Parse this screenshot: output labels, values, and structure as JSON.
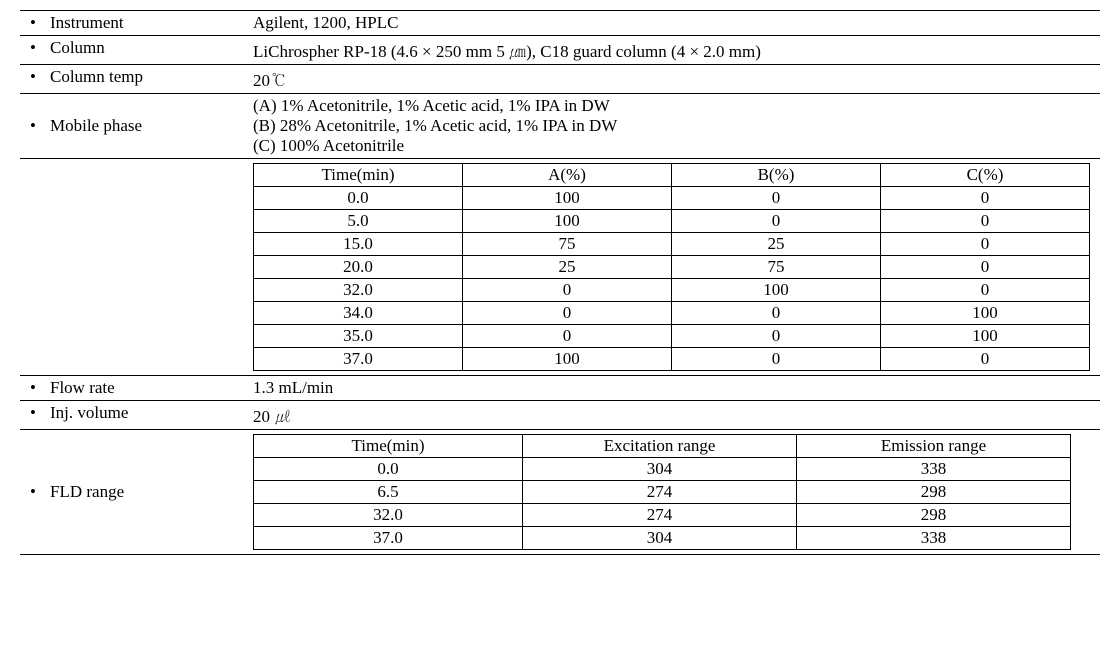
{
  "rows": {
    "instrument": {
      "label": "Instrument",
      "value": "Agilent, 1200, HPLC"
    },
    "column": {
      "label": "Column",
      "value": "LiChrospher RP-18 (4.6 × 250 mm 5 ㎛), C18 guard column (4 × 2.0 mm)"
    },
    "columnTemp": {
      "label": "Column temp",
      "value": "20℃"
    },
    "mobilePhase": {
      "label": "Mobile phase",
      "lineA": "(A) 1% Acetonitrile, 1% Acetic acid, 1% IPA in DW",
      "lineB": "(B) 28% Acetonitrile, 1% Acetic acid, 1% IPA in DW",
      "lineC": "(C) 100% Acetonitrile"
    },
    "gradient": {
      "headers": {
        "time": "Time(min)",
        "a": "A(%)",
        "b": "B(%)",
        "c": "C(%)"
      },
      "data": [
        {
          "time": "0.0",
          "a": "100",
          "b": "0",
          "c": "0"
        },
        {
          "time": "5.0",
          "a": "100",
          "b": "0",
          "c": "0"
        },
        {
          "time": "15.0",
          "a": "75",
          "b": "25",
          "c": "0"
        },
        {
          "time": "20.0",
          "a": "25",
          "b": "75",
          "c": "0"
        },
        {
          "time": "32.0",
          "a": "0",
          "b": "100",
          "c": "0"
        },
        {
          "time": "34.0",
          "a": "0",
          "b": "0",
          "c": "100"
        },
        {
          "time": "35.0",
          "a": "0",
          "b": "0",
          "c": "100"
        },
        {
          "time": "37.0",
          "a": "100",
          "b": "0",
          "c": "0"
        }
      ]
    },
    "flowRate": {
      "label": "Flow rate",
      "value": "1.3 mL/min"
    },
    "injVolume": {
      "label": "Inj. volume",
      "value": "20 ㎕"
    },
    "fld": {
      "label": "FLD range",
      "headers": {
        "time": "Time(min)",
        "ex": "Excitation range",
        "em": "Emission range"
      },
      "data": [
        {
          "time": "0.0",
          "ex": "304",
          "em": "338"
        },
        {
          "time": "6.5",
          "ex": "274",
          "em": "298"
        },
        {
          "time": "32.0",
          "ex": "274",
          "em": "298"
        },
        {
          "time": "37.0",
          "ex": "304",
          "em": "338"
        }
      ]
    }
  },
  "style": {
    "bullet": "•",
    "colors": {
      "text": "#000000",
      "border": "#000000",
      "background": "#ffffff"
    },
    "font_family": "Times New Roman / Batang serif",
    "font_size_pt": 13
  }
}
